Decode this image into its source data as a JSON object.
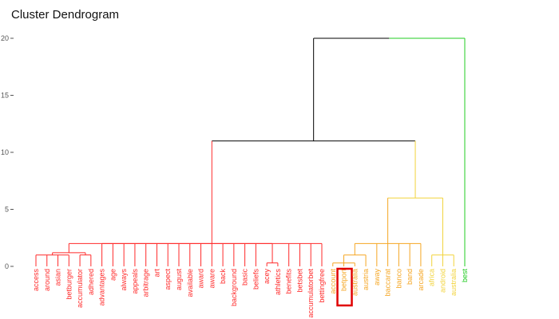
{
  "chart_data": {
    "type": "dendrogram",
    "title": "Cluster Dendrogram",
    "ylim": [
      0,
      20
    ],
    "yticks": [
      {
        "value": 0,
        "label": "0"
      },
      {
        "value": 5,
        "label": "5"
      },
      {
        "value": 10,
        "label": "10"
      },
      {
        "value": 15,
        "label": "15"
      },
      {
        "value": 20,
        "label": "20"
      }
    ],
    "colors": {
      "red": "#ff2a2a",
      "orange": "#f5a623",
      "yellow": "#f2d33a",
      "green": "#22cc22",
      "root": "#000000",
      "highlight": "#e00000"
    },
    "leaves": [
      {
        "label": "access",
        "color": "red"
      },
      {
        "label": "around",
        "color": "red"
      },
      {
        "label": "asian",
        "color": "red"
      },
      {
        "label": "betburger",
        "color": "red"
      },
      {
        "label": "accumulator",
        "color": "red"
      },
      {
        "label": "adhered",
        "color": "red"
      },
      {
        "label": "advantages",
        "color": "red"
      },
      {
        "label": "age",
        "color": "red"
      },
      {
        "label": "always",
        "color": "red"
      },
      {
        "label": "appeals",
        "color": "red"
      },
      {
        "label": "arbitrage",
        "color": "red"
      },
      {
        "label": "art",
        "color": "red"
      },
      {
        "label": "aspect",
        "color": "red"
      },
      {
        "label": "august",
        "color": "red"
      },
      {
        "label": "available",
        "color": "red"
      },
      {
        "label": "award",
        "color": "red"
      },
      {
        "label": "aware",
        "color": "red"
      },
      {
        "label": "back",
        "color": "red"
      },
      {
        "label": "background",
        "color": "red"
      },
      {
        "label": "basic",
        "color": "red"
      },
      {
        "label": "beliefs",
        "color": "red"
      },
      {
        "label": "acey",
        "color": "red"
      },
      {
        "label": "athletics",
        "color": "red"
      },
      {
        "label": "benefits",
        "color": "red"
      },
      {
        "label": "betsbet",
        "color": "red"
      },
      {
        "label": "accumulatorbet",
        "color": "red"
      },
      {
        "label": "bettingfree",
        "color": "red"
      },
      {
        "label": "account",
        "color": "orange"
      },
      {
        "label": "betport",
        "color": "orange",
        "highlight": true
      },
      {
        "label": "australia",
        "color": "orange"
      },
      {
        "label": "austria",
        "color": "orange"
      },
      {
        "label": "away",
        "color": "orange"
      },
      {
        "label": "baccarat",
        "color": "orange"
      },
      {
        "label": "banco",
        "color": "orange"
      },
      {
        "label": "band",
        "color": "orange"
      },
      {
        "label": "arcade",
        "color": "orange"
      },
      {
        "label": "africa",
        "color": "yellow"
      },
      {
        "label": "android",
        "color": "yellow"
      },
      {
        "label": "australia",
        "color": "yellow"
      },
      {
        "label": "best",
        "color": "green"
      }
    ],
    "merges": [
      {
        "id": "r1",
        "children": [
          0,
          1,
          2,
          3
        ],
        "height": 1.0,
        "color": "red"
      },
      {
        "id": "r2",
        "children": [
          4,
          5
        ],
        "height": 1.0,
        "color": "red"
      },
      {
        "id": "r3",
        "children": [
          "r1",
          "r2"
        ],
        "height": 1.2,
        "color": "red"
      },
      {
        "id": "r4",
        "children": [
          21,
          22
        ],
        "height": 0.3,
        "color": "red"
      },
      {
        "id": "rL",
        "children": [
          "r3",
          "r4"
        ],
        "height": 2.0,
        "color": "red"
      },
      {
        "id": "rA",
        "children": [
          "rL",
          6,
          7,
          8,
          9,
          10,
          11,
          12,
          13,
          14,
          15,
          16,
          17,
          18,
          19,
          20,
          23,
          24,
          25,
          26
        ],
        "height": 2.0,
        "color": "red"
      },
      {
        "id": "o1",
        "children": [
          27,
          28,
          29
        ],
        "height": 0.3,
        "color": "orange"
      },
      {
        "id": "o2",
        "children": [
          "o1",
          30
        ],
        "height": 1.0,
        "color": "orange"
      },
      {
        "id": "o3",
        "children": [
          "o2",
          31,
          32,
          33,
          34,
          35
        ],
        "height": 2.0,
        "color": "orange"
      },
      {
        "id": "y1",
        "children": [
          36,
          37,
          38
        ],
        "height": 1.0,
        "color": "yellow"
      },
      {
        "id": "oy",
        "children": [
          "o3",
          "y1"
        ],
        "height": 6.0,
        "color": "yellow"
      },
      {
        "id": "k1",
        "children": [
          "rA",
          "oy"
        ],
        "height": 11.0,
        "color": "root"
      },
      {
        "id": "root",
        "children": [
          "k1",
          39
        ],
        "height": 20.0,
        "color": "root",
        "right_color": "green"
      }
    ]
  }
}
